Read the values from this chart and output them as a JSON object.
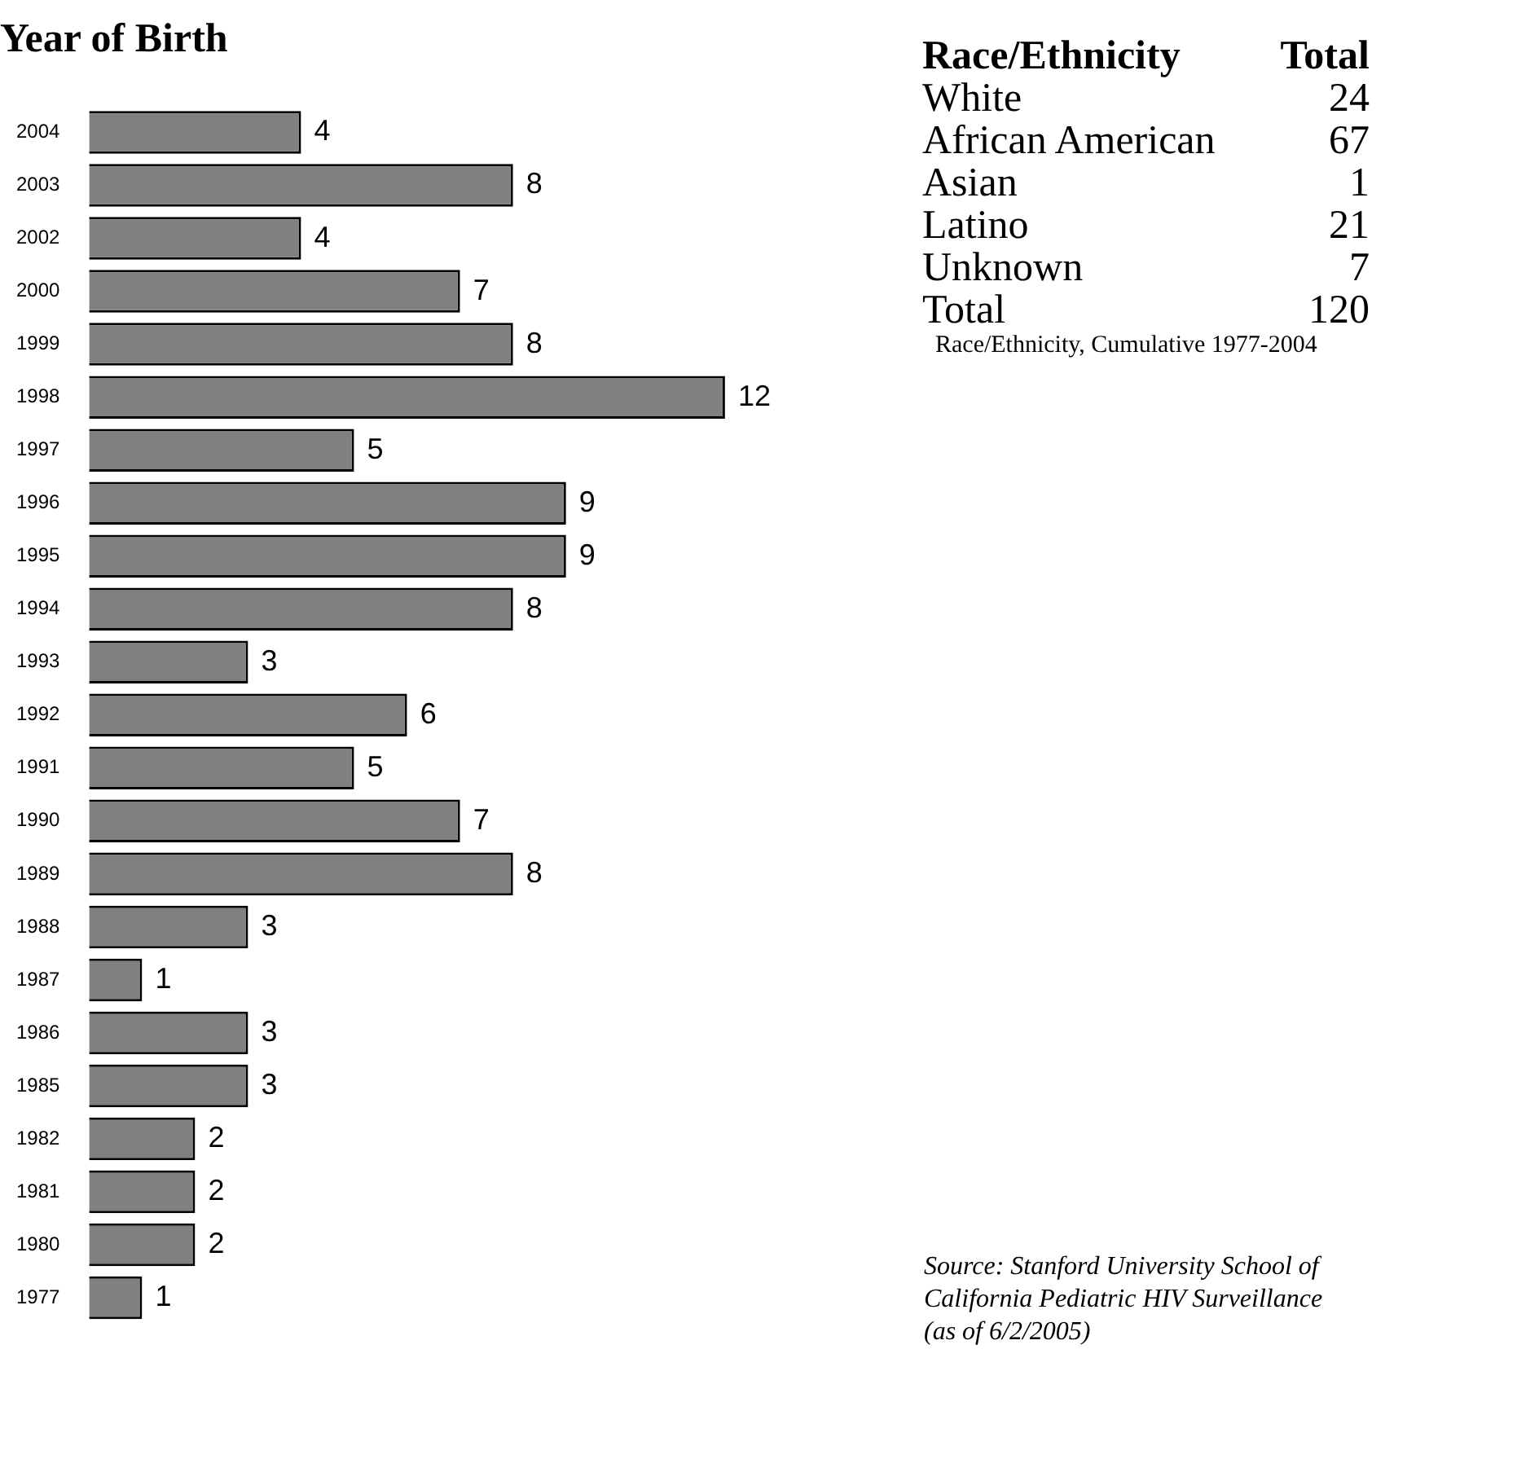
{
  "chart_data": [
    {
      "type": "bar",
      "orientation": "horizontal",
      "title": "Year of Birth",
      "categories": [
        "2004",
        "2003",
        "2002",
        "2000",
        "1999",
        "1998",
        "1997",
        "1996",
        "1995",
        "1994",
        "1993",
        "1992",
        "1991",
        "1990",
        "1989",
        "1988",
        "1987",
        "1986",
        "1985",
        "1982",
        "1981",
        "1980",
        "1977"
      ],
      "values": [
        4,
        8,
        4,
        7,
        8,
        12,
        5,
        9,
        9,
        8,
        3,
        6,
        5,
        7,
        8,
        3,
        1,
        3,
        3,
        2,
        2,
        2,
        1
      ],
      "color": "#808080",
      "data_labels": true,
      "legend": false,
      "tick_labels": "y"
    },
    {
      "type": "other",
      "annotations": [
        "Race/Ethnicity",
        "Total",
        "White",
        "24",
        "African American",
        "67",
        "Asian",
        "1",
        "Latino",
        "21",
        "Unknown",
        "7",
        "Total",
        "120",
        "Race/Ethnicity, Cumulative 1977-2004",
        "Source: Stanford University School of",
        "California Pediatric HIV Surveillance",
        "(as of 6/2/2005)"
      ]
    }
  ]
}
